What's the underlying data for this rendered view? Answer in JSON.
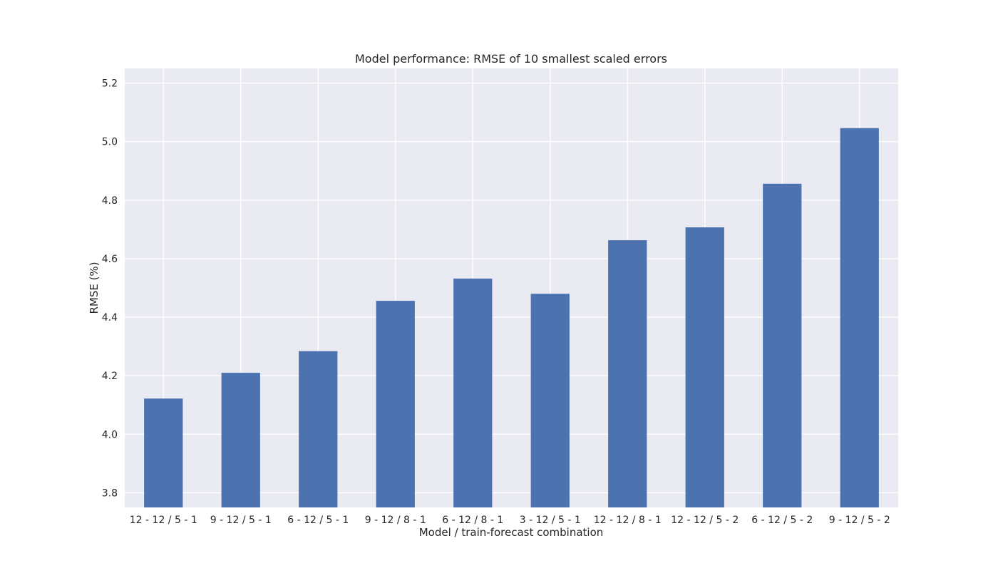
{
  "chart_data": {
    "type": "bar",
    "title": "Model performance: RMSE of 10 smallest scaled errors",
    "xlabel": "Model / train-forecast combination",
    "ylabel": "RMSE (%)",
    "categories": [
      "12 - 12 / 5 - 1",
      "9 - 12 / 5 - 1",
      "6 - 12 / 5 - 1",
      "9 - 12 / 8 - 1",
      "6 - 12 / 8 - 1",
      "3 - 12 / 5 - 1",
      "12 - 12 / 8 - 1",
      "12 - 12 / 5 - 2",
      "6 - 12 / 5 - 2",
      "9 - 12 / 5 - 2"
    ],
    "values": [
      4.122,
      4.21,
      4.284,
      4.456,
      4.532,
      4.48,
      4.663,
      4.707,
      4.856,
      5.046
    ],
    "ylim": [
      3.75,
      5.25
    ],
    "yticks": [
      "3.8",
      "4.0",
      "4.2",
      "4.4",
      "4.6",
      "4.8",
      "5.0",
      "5.2"
    ],
    "grid": true,
    "legend": "none",
    "colors": {
      "bar": "#4c72b0",
      "plot_background": "#eaeaf2",
      "grid": "#ffffff"
    }
  }
}
